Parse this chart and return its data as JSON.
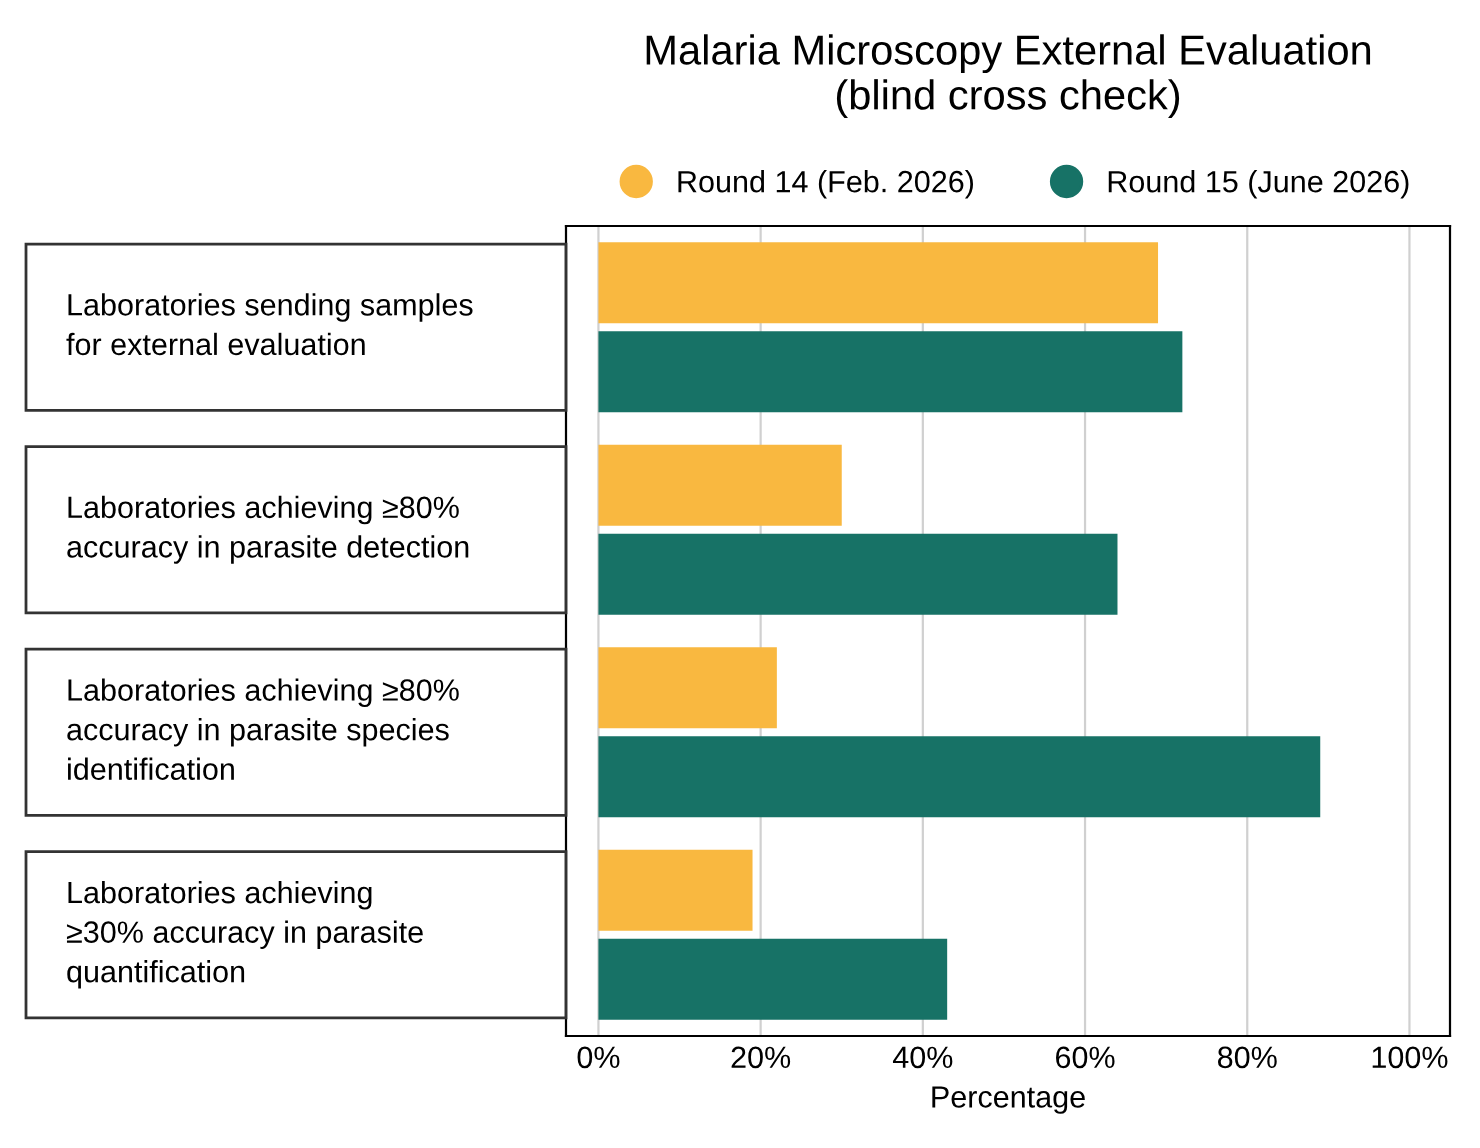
{
  "chart_data": {
    "type": "bar",
    "orientation": "horizontal",
    "title": "Malaria Microscopy External Evaluation\n(blind cross check)",
    "xlabel": "Percentage",
    "categories": [
      "Laboratories sending samples\nfor external evaluation",
      "Laboratories achieving ≥80%\naccuracy in parasite detection",
      "Laboratories achieving ≥80%\naccuracy in parasite species\nidentification",
      "Laboratories achieving\n≥30% accuracy in parasite\nquantification"
    ],
    "series": [
      {
        "name": "Round 14 (Feb. 2026)",
        "color": "#f9b840",
        "values": [
          69,
          30,
          22,
          19
        ]
      },
      {
        "name": "Round 15 (June 2026)",
        "color": "#177266",
        "values": [
          72,
          64,
          89,
          43
        ]
      }
    ],
    "xlim": [
      -4,
      105
    ],
    "xticks": [
      {
        "value": 0,
        "label": "0%"
      },
      {
        "value": 20,
        "label": "20%"
      },
      {
        "value": 40,
        "label": "40%"
      },
      {
        "value": 60,
        "label": "60%"
      },
      {
        "value": 80,
        "label": "80%"
      },
      {
        "value": 100,
        "label": "100%"
      }
    ],
    "grid": "x",
    "legend": "top"
  }
}
